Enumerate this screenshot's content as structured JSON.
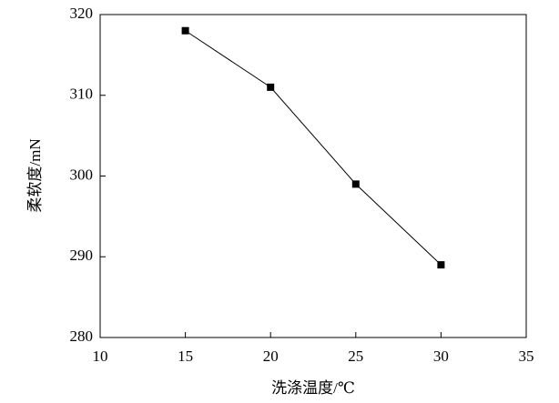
{
  "chart_data": {
    "type": "line",
    "x_label": "洗涤温度/℃",
    "y_label": "柔软度/mN",
    "x": [
      15,
      20,
      25,
      30
    ],
    "values": [
      318,
      311,
      299,
      289
    ],
    "color": "#000000",
    "xlim": [
      10,
      35
    ],
    "xticks": [
      10,
      15,
      20,
      25,
      30,
      35
    ],
    "ylim": [
      280,
      320
    ],
    "yticks": [
      280,
      290,
      300,
      310,
      320
    ],
    "grid": false
  }
}
